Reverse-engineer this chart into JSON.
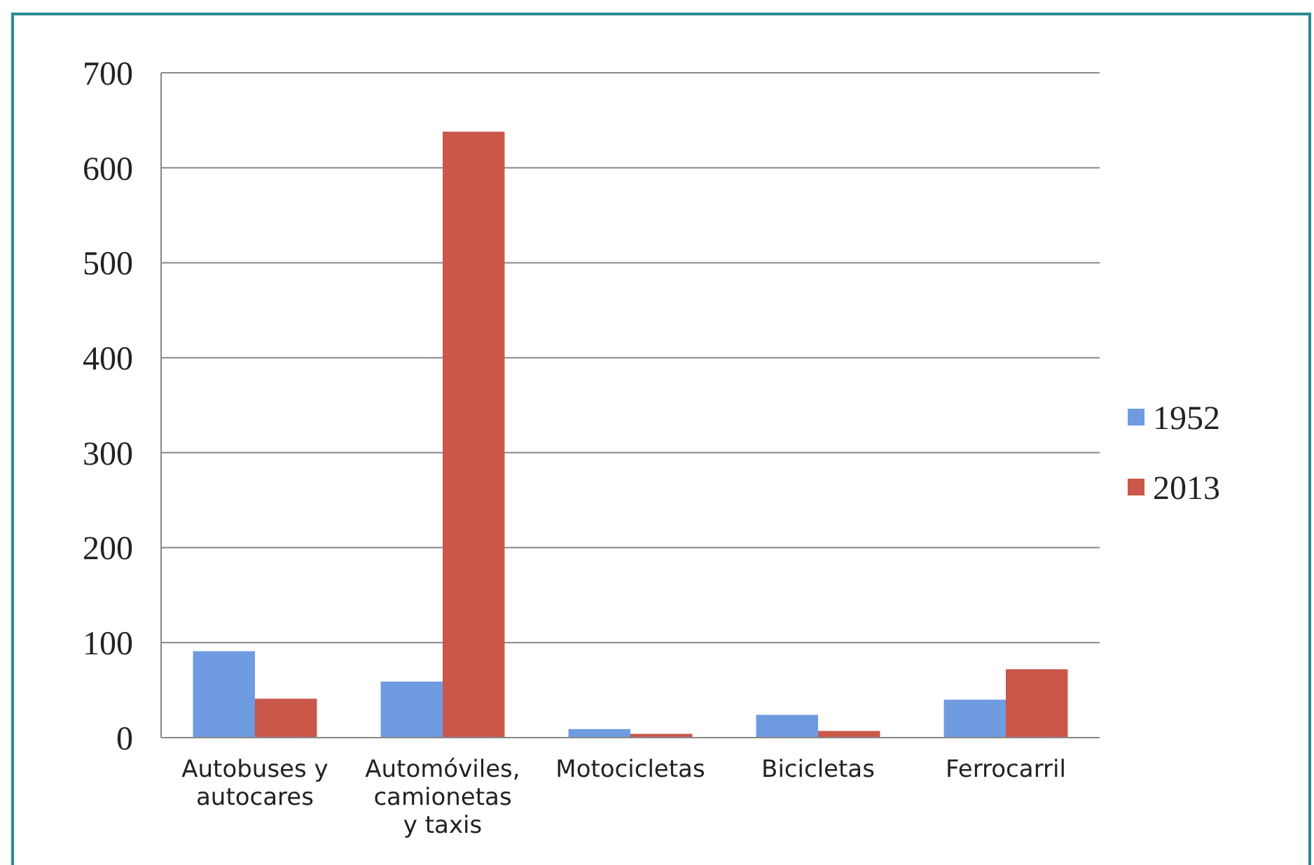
{
  "chart_data": {
    "type": "bar",
    "categories": [
      "Autobuses y autocares",
      "Automóviles, camionetas y taxis",
      "Motocicletas",
      "Bicicletas",
      "Ferrocarril"
    ],
    "series": [
      {
        "name": "1952",
        "color": "#6f9be0",
        "values": [
          91,
          59,
          9,
          24,
          40
        ]
      },
      {
        "name": "2013",
        "color": "#c9574a",
        "values": [
          41,
          638,
          4,
          7,
          72
        ]
      }
    ],
    "ylim": [
      0,
      700
    ],
    "yticks": [
      0,
      100,
      200,
      300,
      400,
      500,
      600,
      700
    ],
    "grid": "y",
    "legend": "right"
  }
}
